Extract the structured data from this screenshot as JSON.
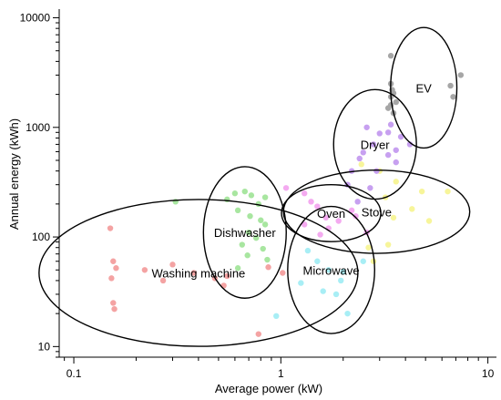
{
  "chart_data": {
    "type": "scatter",
    "title": "",
    "xlabel": "Average power (kW)",
    "ylabel": "Annual energy (kWh)",
    "xscale": "log",
    "yscale": "log",
    "xlim": [
      0.085,
      11
    ],
    "ylim": [
      8,
      12000
    ],
    "x_ticks": [
      {
        "value": 0.1,
        "label": "0.1"
      },
      {
        "value": 1,
        "label": "1"
      },
      {
        "value": 10,
        "label": "10"
      }
    ],
    "y_ticks": [
      {
        "value": 10,
        "label": "10"
      },
      {
        "value": 100,
        "label": "100"
      },
      {
        "value": 1000,
        "label": "1000"
      },
      {
        "value": 10000,
        "label": "10000"
      }
    ],
    "grid": false,
    "legend": "none",
    "series": [
      {
        "name": "Washing machine",
        "color": "#f4a3a3",
        "points": [
          [
            0.15,
            120
          ],
          [
            0.155,
            60
          ],
          [
            0.16,
            52
          ],
          [
            0.152,
            42
          ],
          [
            0.155,
            25
          ],
          [
            0.157,
            22
          ],
          [
            0.22,
            50
          ],
          [
            0.27,
            40
          ],
          [
            0.3,
            56
          ],
          [
            0.38,
            47
          ],
          [
            0.48,
            42
          ],
          [
            0.53,
            36
          ],
          [
            0.55,
            44
          ],
          [
            0.78,
            13
          ],
          [
            0.87,
            53
          ],
          [
            1.02,
            47
          ]
        ]
      },
      {
        "name": "Dishwasher",
        "color": "#a8e6a0",
        "points": [
          [
            0.31,
            210
          ],
          [
            0.55,
            220
          ],
          [
            0.6,
            250
          ],
          [
            0.67,
            260
          ],
          [
            0.72,
            240
          ],
          [
            0.78,
            200
          ],
          [
            0.84,
            230
          ],
          [
            0.62,
            175
          ],
          [
            0.71,
            155
          ],
          [
            0.8,
            142
          ],
          [
            0.84,
            130
          ],
          [
            0.7,
            110
          ],
          [
            0.76,
            98
          ],
          [
            0.65,
            85
          ],
          [
            0.82,
            78
          ],
          [
            0.69,
            68
          ],
          [
            0.86,
            62
          ],
          [
            0.62,
            52
          ]
        ]
      },
      {
        "name": "Oven",
        "color": "#f4aaf0",
        "points": [
          [
            1.06,
            280
          ],
          [
            1.3,
            250
          ],
          [
            1.4,
            210
          ],
          [
            1.5,
            190
          ],
          [
            1.65,
            150
          ],
          [
            1.9,
            140
          ],
          [
            1.7,
            120
          ],
          [
            1.3,
            130
          ],
          [
            2.2,
            175
          ],
          [
            2.3,
            155
          ],
          [
            1.55,
            105
          ],
          [
            2.6,
            110
          ]
        ]
      },
      {
        "name": "Microwave",
        "color": "#a8eef5",
        "points": [
          [
            0.95,
            19
          ],
          [
            1.35,
            75
          ],
          [
            1.5,
            60
          ],
          [
            1.7,
            50
          ],
          [
            1.95,
            40
          ],
          [
            1.6,
            32
          ],
          [
            2.1,
            20
          ],
          [
            2.5,
            60
          ],
          [
            1.85,
            30
          ],
          [
            1.25,
            38
          ],
          [
            2.0,
            48
          ]
        ]
      },
      {
        "name": "Stove",
        "color": "#f7f59a",
        "points": [
          [
            2.45,
            460
          ],
          [
            3.0,
            400
          ],
          [
            3.2,
            230
          ],
          [
            3.6,
            320
          ],
          [
            4.3,
            180
          ],
          [
            4.8,
            260
          ],
          [
            5.2,
            140
          ],
          [
            6.4,
            260
          ],
          [
            3.3,
            85
          ],
          [
            2.65,
            80
          ],
          [
            2.8,
            60
          ],
          [
            3.5,
            150
          ]
        ]
      },
      {
        "name": "Dryer",
        "color": "#c7a0f0",
        "points": [
          [
            2.6,
            1000
          ],
          [
            3.0,
            880
          ],
          [
            3.4,
            1060
          ],
          [
            3.8,
            820
          ],
          [
            4.2,
            700
          ],
          [
            2.8,
            700
          ],
          [
            3.3,
            560
          ],
          [
            3.6,
            620
          ],
          [
            2.4,
            520
          ],
          [
            2.2,
            400
          ],
          [
            2.9,
            400
          ],
          [
            3.6,
            480
          ],
          [
            2.1,
            300
          ],
          [
            2.7,
            280
          ],
          [
            2.35,
            210
          ],
          [
            3.3,
            900
          ],
          [
            2.5,
            590
          ]
        ]
      },
      {
        "name": "EV",
        "color": "#a6a6a6",
        "points": [
          [
            3.4,
            4500
          ],
          [
            3.4,
            2500
          ],
          [
            3.45,
            2200
          ],
          [
            3.5,
            2050
          ],
          [
            3.4,
            1900
          ],
          [
            3.6,
            1700
          ],
          [
            3.3,
            1500
          ],
          [
            3.5,
            1350
          ],
          [
            6.6,
            2400
          ],
          [
            6.8,
            1900
          ],
          [
            7.4,
            3000
          ],
          [
            3.4,
            1600
          ]
        ]
      }
    ],
    "annotations": [
      {
        "text": "Washing machine",
        "x": 0.4,
        "y": 47,
        "rx_decades": 0.77,
        "ry_decades": 0.67
      },
      {
        "text": "Dishwasher",
        "x": 0.67,
        "y": 110,
        "rx_decades": 0.2,
        "ry_decades": 0.6
      },
      {
        "text": "Oven",
        "x": 1.75,
        "y": 165,
        "rx_decades": 0.24,
        "ry_decades": 0.26
      },
      {
        "text": "Microwave",
        "x": 1.75,
        "y": 50,
        "rx_decades": 0.21,
        "ry_decades": 0.58
      },
      {
        "text": "Stove",
        "x": 2.9,
        "y": 170,
        "rx_decades": 0.45,
        "ry_decades": 0.38
      },
      {
        "text": "Dryer",
        "x": 2.85,
        "y": 700,
        "rx_decades": 0.2,
        "ry_decades": 0.5
      },
      {
        "text": "EV",
        "x": 4.9,
        "y": 2300,
        "rx_decades": 0.16,
        "ry_decades": 0.55
      }
    ]
  }
}
